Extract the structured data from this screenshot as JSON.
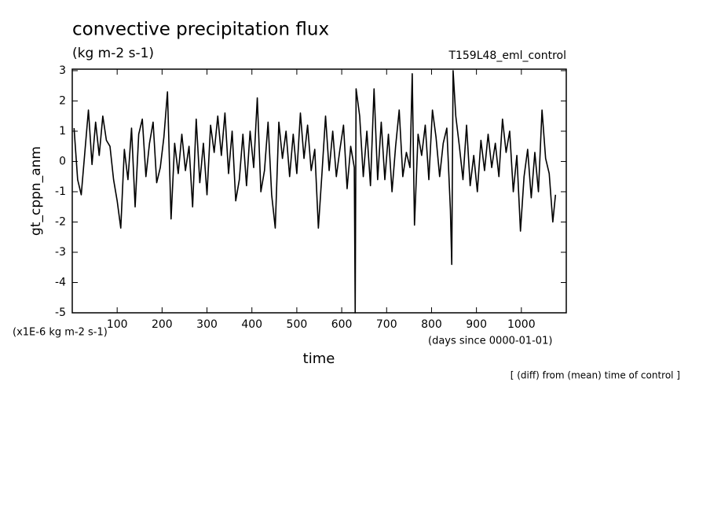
{
  "chart_data": {
    "type": "line",
    "title": "convective precipitation flux",
    "subtitle": "(kg m-2 s-1)",
    "run_label": "T159L48_eml_control",
    "y_label": "gt_cppn_anm",
    "x_label": "time",
    "y_unit_note": "(x1E-6 kg m-2 s-1)",
    "x_unit_note": "(days since 0000-01-01)",
    "footnote": "[ (diff) from (mean) time of control ]",
    "xlim": [
      0,
      1100
    ],
    "ylim": [
      -5,
      3.05
    ],
    "xticks": [
      100,
      200,
      300,
      400,
      500,
      600,
      700,
      800,
      900,
      1000
    ],
    "yticks": [
      -5,
      -4,
      -3,
      -2,
      -1,
      0,
      1,
      2,
      3
    ],
    "color": "#000000",
    "x": [
      4,
      12,
      20,
      28,
      36,
      44,
      52,
      60,
      68,
      76,
      84,
      92,
      100,
      108,
      116,
      124,
      132,
      140,
      148,
      156,
      164,
      172,
      180,
      188,
      196,
      204,
      212,
      220,
      228,
      236,
      244,
      252,
      260,
      268,
      276,
      284,
      292,
      300,
      308,
      316,
      324,
      332,
      340,
      348,
      356,
      364,
      372,
      380,
      388,
      396,
      404,
      412,
      420,
      428,
      436,
      444,
      452,
      460,
      468,
      476,
      484,
      492,
      500,
      508,
      516,
      524,
      532,
      540,
      548,
      556,
      564,
      572,
      580,
      588,
      596,
      604,
      612,
      620,
      628,
      630,
      632,
      640,
      648,
      656,
      664,
      672,
      680,
      688,
      696,
      704,
      712,
      720,
      728,
      736,
      744,
      752,
      757,
      762,
      770,
      778,
      786,
      794,
      802,
      810,
      818,
      826,
      834,
      842,
      845,
      848,
      854,
      862,
      870,
      878,
      886,
      894,
      902,
      910,
      918,
      926,
      934,
      942,
      950,
      958,
      966,
      974,
      982,
      990,
      998,
      1006,
      1014,
      1022,
      1030,
      1038,
      1046,
      1054,
      1062,
      1070,
      1076
    ],
    "values": [
      1.1,
      -0.6,
      -1.1,
      0.3,
      1.7,
      -0.1,
      1.3,
      0.2,
      1.5,
      0.7,
      0.5,
      -0.6,
      -1.3,
      -2.2,
      0.4,
      -0.6,
      1.1,
      -1.5,
      0.9,
      1.4,
      -0.5,
      0.6,
      1.3,
      -0.7,
      -0.2,
      0.8,
      2.3,
      -1.9,
      0.6,
      -0.4,
      0.9,
      -0.3,
      0.5,
      -1.5,
      1.4,
      -0.7,
      0.6,
      -1.1,
      1.2,
      0.3,
      1.5,
      0.2,
      1.6,
      -0.4,
      1.0,
      -1.3,
      -0.6,
      0.9,
      -0.8,
      1.0,
      -0.2,
      2.1,
      -1.0,
      -0.3,
      1.3,
      -1.1,
      -2.2,
      1.3,
      0.1,
      1.0,
      -0.5,
      0.9,
      -0.4,
      1.6,
      0.1,
      1.2,
      -0.3,
      0.4,
      -2.2,
      -0.4,
      1.5,
      -0.3,
      1.0,
      -0.5,
      0.4,
      1.2,
      -0.9,
      0.5,
      -0.2,
      -5,
      2.4,
      1.5,
      -0.5,
      1.0,
      -0.8,
      2.4,
      -0.6,
      1.3,
      -0.6,
      0.9,
      -1.0,
      0.5,
      1.7,
      -0.5,
      0.3,
      -0.2,
      2.9,
      -2.1,
      0.9,
      0.2,
      1.2,
      -0.6,
      1.7,
      0.8,
      -0.5,
      0.6,
      1.1,
      -1.6,
      -3.4,
      3.0,
      1.5,
      0.5,
      -0.6,
      1.2,
      -0.8,
      0.2,
      -1.0,
      0.7,
      -0.3,
      0.9,
      -0.2,
      0.6,
      -0.5,
      1.4,
      0.3,
      1.0,
      -1.0,
      0.2,
      -2.3,
      -0.5,
      0.4,
      -1.2,
      0.3,
      -1.0,
      1.7,
      0.1,
      -0.4,
      -2.0,
      -1.1
    ]
  }
}
